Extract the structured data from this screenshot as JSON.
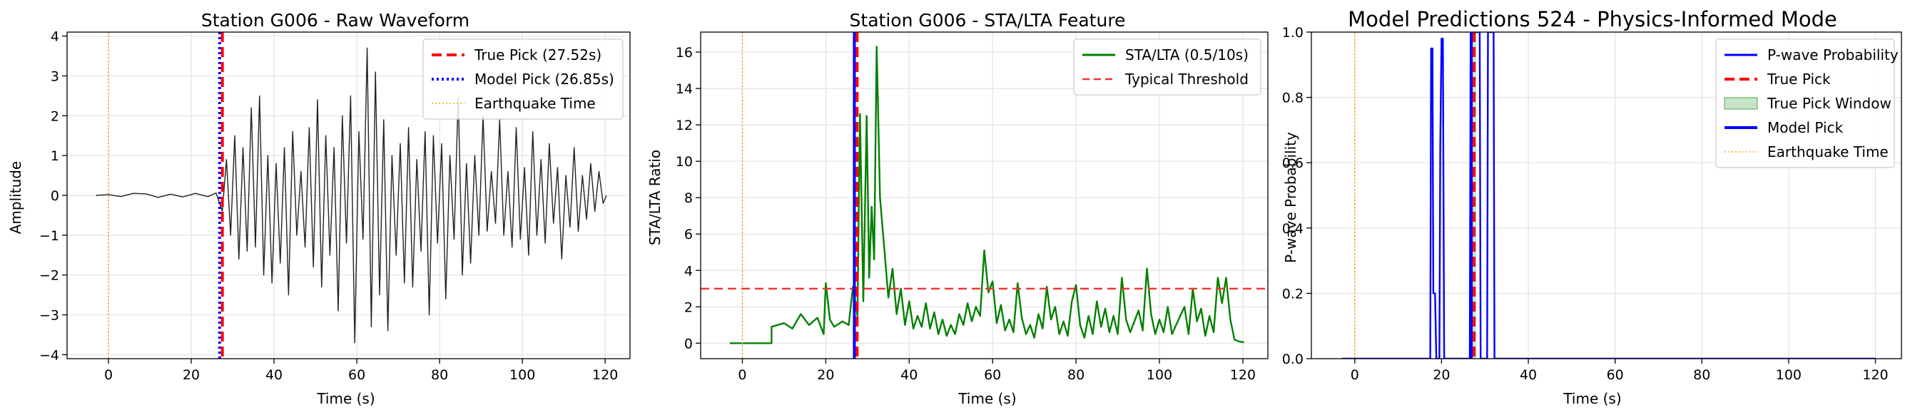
{
  "chart_data": [
    {
      "type": "line",
      "title": "Station G006 - Raw Waveform",
      "xlabel": "Time (s)",
      "ylabel": "Amplitude",
      "xlim": [
        -10,
        126
      ],
      "ylim": [
        -4.1,
        4.1
      ],
      "xticks": [
        0,
        20,
        40,
        60,
        80,
        100,
        120
      ],
      "yticks": [
        -4,
        -3,
        -2,
        -1,
        0,
        1,
        2,
        3,
        4
      ],
      "grid": true,
      "legend_position": "top-right",
      "series": [
        {
          "name": "",
          "kind": "waveform",
          "color": "#222222",
          "points": [
            [
              -3,
              0
            ],
            [
              0,
              0.02
            ],
            [
              3,
              -0.03
            ],
            [
              6,
              0.05
            ],
            [
              9,
              0.04
            ],
            [
              12,
              -0.05
            ],
            [
              15,
              0.03
            ],
            [
              18,
              -0.04
            ],
            [
              21,
              0.05
            ],
            [
              24,
              -0.03
            ],
            [
              26,
              0.06
            ],
            [
              27.5,
              -0.4
            ],
            [
              28.5,
              0.9
            ],
            [
              29.5,
              -1.0
            ],
            [
              30.5,
              1.5
            ],
            [
              31.5,
              -1.6
            ],
            [
              32.5,
              1.2
            ],
            [
              33.5,
              -1.4
            ],
            [
              34.5,
              2.2
            ],
            [
              35.5,
              -1.3
            ],
            [
              36.5,
              2.5
            ],
            [
              37.5,
              -2.0
            ],
            [
              38.5,
              1.0
            ],
            [
              39.5,
              -2.2
            ],
            [
              40.5,
              0.8
            ],
            [
              41.5,
              -1.7
            ],
            [
              42.5,
              1.2
            ],
            [
              43.5,
              -2.5
            ],
            [
              44.5,
              1.6
            ],
            [
              45.5,
              -1.0
            ],
            [
              46.5,
              0.6
            ],
            [
              47.5,
              -1.3
            ],
            [
              48.5,
              1.7
            ],
            [
              49.5,
              -1.8
            ],
            [
              50.5,
              2.4
            ],
            [
              51.5,
              -2.3
            ],
            [
              52.5,
              1.5
            ],
            [
              53.5,
              -1.5
            ],
            [
              54.5,
              1.2
            ],
            [
              55.5,
              -2.9
            ],
            [
              56.5,
              2.0
            ],
            [
              57.5,
              -1.2
            ],
            [
              58.5,
              2.5
            ],
            [
              59.5,
              -3.7
            ],
            [
              60.5,
              1.6
            ],
            [
              61.5,
              -1.1
            ],
            [
              62.5,
              3.7
            ],
            [
              63.5,
              -3.3
            ],
            [
              64.5,
              3.1
            ],
            [
              65.5,
              -2.5
            ],
            [
              66.5,
              1.9
            ],
            [
              67.5,
              -3.4
            ],
            [
              68.5,
              1.0
            ],
            [
              69.5,
              -1.5
            ],
            [
              70.5,
              1.3
            ],
            [
              71.5,
              -2.2
            ],
            [
              72.5,
              1.7
            ],
            [
              73.5,
              -2.3
            ],
            [
              74.5,
              0.9
            ],
            [
              75.5,
              -1.4
            ],
            [
              76.5,
              1.6
            ],
            [
              77.5,
              -3.0
            ],
            [
              78.5,
              1.5
            ],
            [
              79.5,
              -1.2
            ],
            [
              80.5,
              1.3
            ],
            [
              81.5,
              -2.6
            ],
            [
              82.5,
              1.0
            ],
            [
              83.5,
              -1.1
            ],
            [
              84.5,
              2.5
            ],
            [
              85.5,
              -2.0
            ],
            [
              86.5,
              0.8
            ],
            [
              87.5,
              -1.7
            ],
            [
              88.5,
              1.0
            ],
            [
              89.5,
              -1.0
            ],
            [
              90.5,
              2.0
            ],
            [
              91.5,
              -0.9
            ],
            [
              92.5,
              0.6
            ],
            [
              93.5,
              -0.7
            ],
            [
              94.5,
              1.9
            ],
            [
              95.5,
              -1.0
            ],
            [
              96.5,
              0.6
            ],
            [
              97.5,
              -1.3
            ],
            [
              98.5,
              1.7
            ],
            [
              99.5,
              -1.1
            ],
            [
              100.5,
              0.7
            ],
            [
              101.5,
              -1.5
            ],
            [
              102.5,
              1.6
            ],
            [
              103.5,
              -1.0
            ],
            [
              104.5,
              0.9
            ],
            [
              105.5,
              -1.2
            ],
            [
              106.5,
              1.3
            ],
            [
              107.5,
              -0.7
            ],
            [
              108.5,
              0.7
            ],
            [
              109.5,
              -1.6
            ],
            [
              110.5,
              0.5
            ],
            [
              111.5,
              -0.8
            ],
            [
              112.5,
              1.2
            ],
            [
              113.5,
              -0.9
            ],
            [
              114.5,
              0.5
            ],
            [
              115.5,
              -0.6
            ],
            [
              116.5,
              0.8
            ],
            [
              117.5,
              -0.4
            ],
            [
              118.5,
              0.6
            ],
            [
              119.5,
              -0.2
            ],
            [
              120.3,
              0.0
            ]
          ]
        },
        {
          "name": "True Pick (27.52s)",
          "kind": "vline",
          "x": 27.52,
          "color": "#ff0000",
          "style": "dashed"
        },
        {
          "name": "Model Pick (26.85s)",
          "kind": "vline",
          "x": 26.85,
          "color": "#0000ff",
          "style": "dotted"
        },
        {
          "name": "Earthquake Time",
          "kind": "vline",
          "x": 0,
          "color": "#ffa500",
          "style": "dotted-thin"
        }
      ]
    },
    {
      "type": "line",
      "title": "Station G006 - STA/LTA Feature",
      "xlabel": "Time (s)",
      "ylabel": "STA/LTA Ratio",
      "xlim": [
        -10,
        126
      ],
      "ylim": [
        -0.85,
        17.1
      ],
      "xticks": [
        0,
        20,
        40,
        60,
        80,
        100,
        120
      ],
      "yticks": [
        0,
        2,
        4,
        6,
        8,
        10,
        12,
        14,
        16
      ],
      "grid": true,
      "legend_position": "top-right",
      "series": [
        {
          "name": "STA/LTA (0.5/10s)",
          "kind": "line",
          "color": "#008000",
          "points": [
            [
              -3,
              0
            ],
            [
              7,
              0
            ],
            [
              7,
              0.9
            ],
            [
              10,
              1.1
            ],
            [
              12,
              0.8
            ],
            [
              14,
              1.6
            ],
            [
              16,
              1.0
            ],
            [
              18,
              1.4
            ],
            [
              19.5,
              0.5
            ],
            [
              20,
              3.3
            ],
            [
              21,
              1.3
            ],
            [
              22,
              0.9
            ],
            [
              24,
              1.2
            ],
            [
              25.5,
              1.0
            ],
            [
              26.5,
              3.1
            ],
            [
              27.6,
              1.5
            ],
            [
              28.2,
              12.6
            ],
            [
              29,
              2.3
            ],
            [
              29.8,
              12.5
            ],
            [
              30.4,
              3.6
            ],
            [
              31,
              7.5
            ],
            [
              31.6,
              4.6
            ],
            [
              32.2,
              16.3
            ],
            [
              33,
              8.0
            ],
            [
              34,
              5.3
            ],
            [
              35,
              2.5
            ],
            [
              36,
              4.1
            ],
            [
              37,
              1.6
            ],
            [
              38,
              3.0
            ],
            [
              39,
              1.0
            ],
            [
              40,
              2.3
            ],
            [
              41,
              0.8
            ],
            [
              42,
              1.5
            ],
            [
              43,
              0.9
            ],
            [
              44,
              2.2
            ],
            [
              45,
              0.8
            ],
            [
              46,
              1.7
            ],
            [
              47,
              0.5
            ],
            [
              48,
              1.3
            ],
            [
              49,
              0.4
            ],
            [
              50,
              1.0
            ],
            [
              51,
              0.5
            ],
            [
              52,
              1.6
            ],
            [
              53,
              1.0
            ],
            [
              54,
              2.2
            ],
            [
              55,
              1.2
            ],
            [
              56,
              2.0
            ],
            [
              57,
              1.5
            ],
            [
              58,
              5.1
            ],
            [
              59,
              2.8
            ],
            [
              60,
              3.4
            ],
            [
              61,
              1.1
            ],
            [
              62,
              2.1
            ],
            [
              63,
              0.7
            ],
            [
              64,
              1.3
            ],
            [
              65,
              0.6
            ],
            [
              66,
              3.3
            ],
            [
              67,
              1.4
            ],
            [
              68,
              0.5
            ],
            [
              69,
              1.0
            ],
            [
              70,
              0.3
            ],
            [
              71,
              1.6
            ],
            [
              72,
              0.8
            ],
            [
              73,
              3.1
            ],
            [
              74,
              1.3
            ],
            [
              75,
              2.0
            ],
            [
              76,
              0.5
            ],
            [
              77,
              1.2
            ],
            [
              78,
              0.4
            ],
            [
              79,
              2.3
            ],
            [
              80,
              3.2
            ],
            [
              81,
              1.0
            ],
            [
              82,
              0.3
            ],
            [
              83,
              1.5
            ],
            [
              84,
              0.5
            ],
            [
              85,
              2.3
            ],
            [
              86,
              0.9
            ],
            [
              87,
              1.9
            ],
            [
              88,
              0.6
            ],
            [
              89,
              1.5
            ],
            [
              90,
              0.5
            ],
            [
              91,
              3.6
            ],
            [
              92,
              1.3
            ],
            [
              93,
              0.6
            ],
            [
              94,
              1.2
            ],
            [
              95,
              1.8
            ],
            [
              96,
              0.7
            ],
            [
              97,
              4.1
            ],
            [
              98,
              1.6
            ],
            [
              99,
              0.5
            ],
            [
              100,
              1.3
            ],
            [
              101,
              0.6
            ],
            [
              102,
              2.0
            ],
            [
              103,
              0.5
            ],
            [
              104,
              1.0
            ],
            [
              105,
              1.5
            ],
            [
              106,
              2.0
            ],
            [
              107,
              0.5
            ],
            [
              108,
              3.0
            ],
            [
              109,
              1.2
            ],
            [
              110,
              1.9
            ],
            [
              111,
              0.4
            ],
            [
              112,
              1.5
            ],
            [
              113,
              0.6
            ],
            [
              114,
              3.6
            ],
            [
              115,
              2.2
            ],
            [
              116,
              3.6
            ],
            [
              117,
              1.3
            ],
            [
              118,
              0.2
            ],
            [
              119,
              0.1
            ],
            [
              120.3,
              0.05
            ]
          ]
        },
        {
          "name": "Typical Threshold",
          "kind": "hline",
          "y": 3,
          "color": "#ee3333",
          "style": "dashed"
        },
        {
          "name": "",
          "kind": "vline",
          "x": 26.85,
          "color": "#0000ff",
          "style": "solid"
        },
        {
          "name": "",
          "kind": "vline",
          "x": 27.52,
          "color": "#ff0000",
          "style": "dashed"
        },
        {
          "name": "",
          "kind": "vline",
          "x": 0,
          "color": "#ffa500",
          "style": "dotted-thin"
        }
      ]
    },
    {
      "type": "line",
      "title": "Model Predictions 524 - Physics-Informed Mode",
      "xlabel": "Time (s)",
      "ylabel": "P-wave Probability",
      "xlim": [
        -10,
        126
      ],
      "ylim": [
        0,
        1
      ],
      "xticks": [
        0,
        20,
        40,
        60,
        80,
        100,
        120
      ],
      "yticks": [
        0.0,
        0.2,
        0.4,
        0.6,
        0.8,
        1.0
      ],
      "ytick_labels": [
        "0.0",
        "0.2",
        "0.4",
        "0.6",
        "0.8",
        "1.0"
      ],
      "grid": true,
      "legend_position": "top-right",
      "series": [
        {
          "name": "P-wave Probability",
          "kind": "line",
          "color": "#0000ff",
          "points": [
            [
              -3,
              0
            ],
            [
              17.4,
              0
            ],
            [
              17.6,
              0.95
            ],
            [
              17.9,
              0.95
            ],
            [
              18.1,
              0.2
            ],
            [
              18.5,
              0.2
            ],
            [
              18.8,
              0
            ],
            [
              19.5,
              0
            ],
            [
              19.7,
              0.65
            ],
            [
              20,
              0.98
            ],
            [
              20.3,
              0.98
            ],
            [
              20.6,
              0.0
            ],
            [
              26.5,
              0
            ],
            [
              26.7,
              1.0
            ],
            [
              28.8,
              1.0
            ],
            [
              29,
              0
            ],
            [
              30.5,
              0
            ],
            [
              30.7,
              1.0
            ],
            [
              32,
              1.0
            ],
            [
              32.2,
              0
            ],
            [
              120,
              0
            ]
          ]
        },
        {
          "name": "True Pick",
          "kind": "vline",
          "x": 27.52,
          "color": "#ff0000",
          "style": "dashed"
        },
        {
          "name": "True Pick Window",
          "kind": "band",
          "x0": 27.0,
          "x1": 28.0,
          "color": "#9fd49f"
        },
        {
          "name": "Model Pick",
          "kind": "vline",
          "x": 26.85,
          "color": "#0000ff",
          "style": "solid"
        },
        {
          "name": "Earthquake Time",
          "kind": "vline",
          "x": 0,
          "color": "#ffa500",
          "style": "dotted-thin"
        }
      ]
    }
  ]
}
